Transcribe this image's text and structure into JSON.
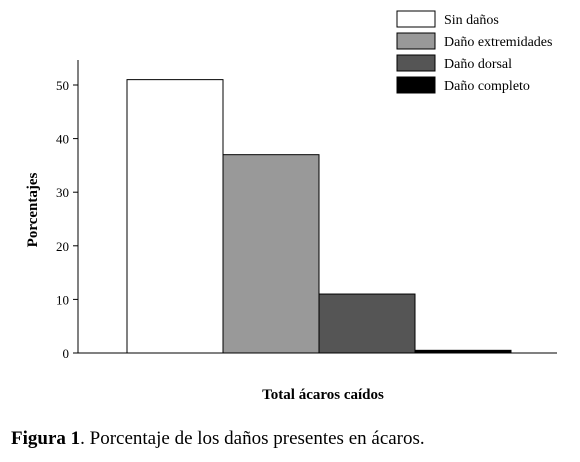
{
  "chart_data": {
    "type": "bar",
    "categories": [
      "Sin daños",
      "Daño extremidades",
      "Daño dorsal",
      "Daño completo"
    ],
    "values": [
      51,
      37,
      11,
      0.5
    ],
    "colors": [
      "#ffffff",
      "#999999",
      "#555555",
      "#000000"
    ],
    "xlabel": "Total ácaros caídos",
    "ylabel": "Porcentajes",
    "ylim": [
      0,
      50
    ],
    "yticks": [
      0,
      10,
      20,
      30,
      40,
      50
    ],
    "grid": false,
    "legend_position": "top-right"
  },
  "caption": {
    "label": "Figura 1",
    "text": ". Porcentaje de los daños presentes en ácaros."
  }
}
